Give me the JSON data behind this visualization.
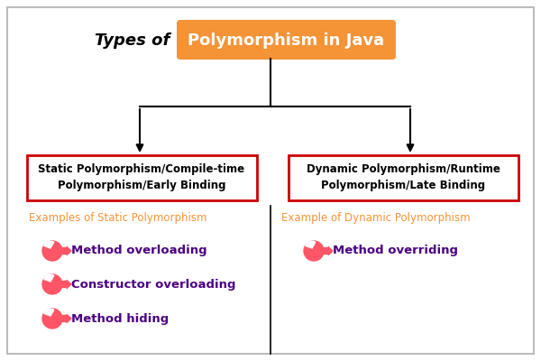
{
  "title_plain": "Types of ",
  "title_highlighted": "Polymorphism in Java",
  "title_plain_color": "#000000",
  "title_highlight_bg": "#F59337",
  "title_highlight_fg": "#FFFFFF",
  "left_box_text": "Static Polymorphism/Compile-time\nPolymorphism/Early Binding",
  "right_box_text": "Dynamic Polymorphism/Runtime\nPolymorphism/Late Binding",
  "box_edge_color": "#CC0000",
  "box_text_color": "#000000",
  "left_section_label": "Examples of Static Polymorphism",
  "right_section_label": "Example of Dynamic Polymorphism",
  "section_label_color": "#F59337",
  "left_items": [
    "Method overloading",
    "Constructor overloading",
    "Method hiding"
  ],
  "right_items": [
    "Method overriding"
  ],
  "item_text_color": "#4B0082",
  "bullet_color": "#FF5566",
  "background_color": "#FFFFFF",
  "border_color": "#BBBBBB"
}
